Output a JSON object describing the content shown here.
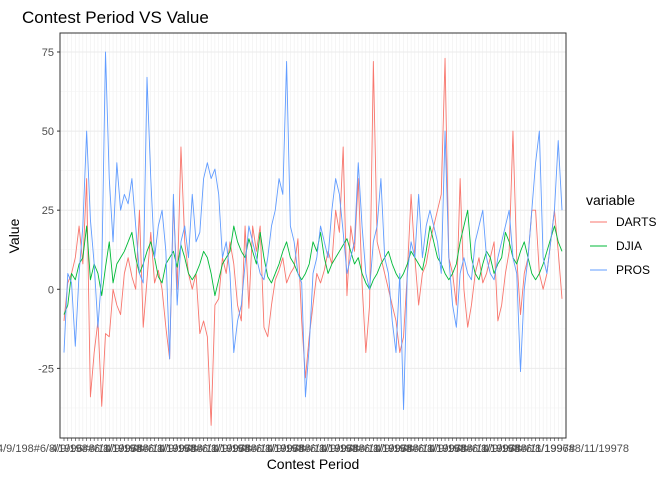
{
  "chart_data": {
    "type": "line",
    "title": "Contest Period VS Value",
    "xlabel": "Contest Period",
    "ylabel": "Value",
    "ylim": [
      -47,
      81
    ],
    "y_ticks": [
      -25,
      0,
      25,
      50,
      75
    ],
    "y_tick_labels": [
      "-25",
      "0",
      "25",
      "50",
      "75"
    ],
    "grid": true,
    "legend": {
      "title": "variable",
      "placement": "right"
    },
    "colors": {
      "DARTS": "#F8766D",
      "DJIA": "#00BA38",
      "PROS": "#619CFF"
    },
    "x_tick_label_overprint": "4/9/198#6/8/1996#8/11/19978",
    "series": [
      {
        "name": "DARTS",
        "values": [
          -10,
          2,
          5,
          10,
          20,
          8,
          35,
          -34,
          -20,
          -10,
          -37,
          -14,
          -15,
          0,
          -5,
          -8,
          5,
          10,
          4,
          0,
          25,
          -12,
          3,
          18,
          2,
          6,
          0,
          -12,
          -22,
          28,
          0,
          45,
          15,
          5,
          0,
          5,
          -14,
          -10,
          -15,
          -43,
          -5,
          -3,
          10,
          5,
          15,
          8,
          -5,
          -10,
          20,
          -6,
          20,
          12,
          20,
          -12,
          -15,
          -5,
          3,
          6,
          10,
          2,
          5,
          7,
          16,
          -10,
          -28,
          -15,
          -5,
          5,
          2,
          6,
          12,
          8,
          25,
          18,
          45,
          -2,
          20,
          12,
          35,
          2,
          -20,
          -5,
          72,
          15,
          10,
          5,
          0,
          -5,
          -10,
          -20,
          -15,
          5,
          30,
          10,
          -5,
          5,
          8,
          15,
          20,
          25,
          30,
          73,
          10,
          5,
          -5,
          35,
          0,
          -12,
          -5,
          5,
          10,
          2,
          5,
          10,
          15,
          -10,
          -5,
          5,
          12,
          50,
          10,
          -8,
          5,
          10,
          25,
          25,
          5,
          0,
          5,
          15,
          25,
          12,
          -3
        ]
      },
      {
        "name": "DJIA",
        "values": [
          -8,
          -5,
          5,
          3,
          8,
          10,
          20,
          3,
          8,
          5,
          -2,
          7,
          15,
          2,
          8,
          10,
          12,
          15,
          18,
          10,
          5,
          8,
          12,
          15,
          10,
          4,
          2,
          8,
          10,
          12,
          7,
          14,
          10,
          5,
          3,
          5,
          8,
          12,
          10,
          5,
          -2,
          3,
          8,
          10,
          12,
          20,
          15,
          12,
          10,
          16,
          12,
          8,
          18,
          10,
          4,
          2,
          5,
          8,
          12,
          15,
          10,
          8,
          5,
          3,
          5,
          8,
          15,
          12,
          18,
          10,
          5,
          8,
          10,
          12,
          14,
          16,
          12,
          8,
          10,
          5,
          2,
          0,
          3,
          5,
          8,
          10,
          12,
          8,
          5,
          3,
          5,
          8,
          12,
          10,
          8,
          6,
          12,
          20,
          15,
          10,
          8,
          5,
          3,
          5,
          8,
          15,
          20,
          25,
          10,
          5,
          3,
          8,
          12,
          10,
          5,
          8,
          10,
          18,
          15,
          10,
          8,
          12,
          15,
          10,
          5,
          3,
          5,
          8,
          12,
          16,
          20,
          15,
          12
        ]
      },
      {
        "name": "PROS",
        "values": [
          -20,
          5,
          2,
          -18,
          5,
          20,
          50,
          22,
          8,
          -12,
          5,
          75,
          35,
          15,
          40,
          25,
          30,
          27,
          35,
          20,
          5,
          2,
          67,
          35,
          10,
          20,
          25,
          12,
          -22,
          30,
          -5,
          15,
          20,
          10,
          30,
          15,
          18,
          35,
          40,
          35,
          38,
          30,
          10,
          15,
          5,
          -20,
          -10,
          -5,
          8,
          20,
          15,
          10,
          5,
          3,
          10,
          20,
          25,
          35,
          30,
          72,
          20,
          15,
          5,
          2,
          -34,
          -18,
          5,
          10,
          20,
          15,
          10,
          25,
          35,
          30,
          18,
          5,
          10,
          15,
          40,
          20,
          5,
          0,
          15,
          20,
          35,
          10,
          5,
          -10,
          -20,
          5,
          -38,
          5,
          15,
          10,
          30,
          10,
          20,
          25,
          20,
          15,
          5,
          50,
          10,
          -5,
          -12,
          5,
          10,
          5,
          3,
          15,
          20,
          25,
          10,
          5,
          3,
          10,
          15,
          20,
          25,
          10,
          5,
          -26,
          0,
          10,
          25,
          40,
          50,
          10,
          5,
          15,
          25,
          47,
          25
        ]
      }
    ]
  }
}
